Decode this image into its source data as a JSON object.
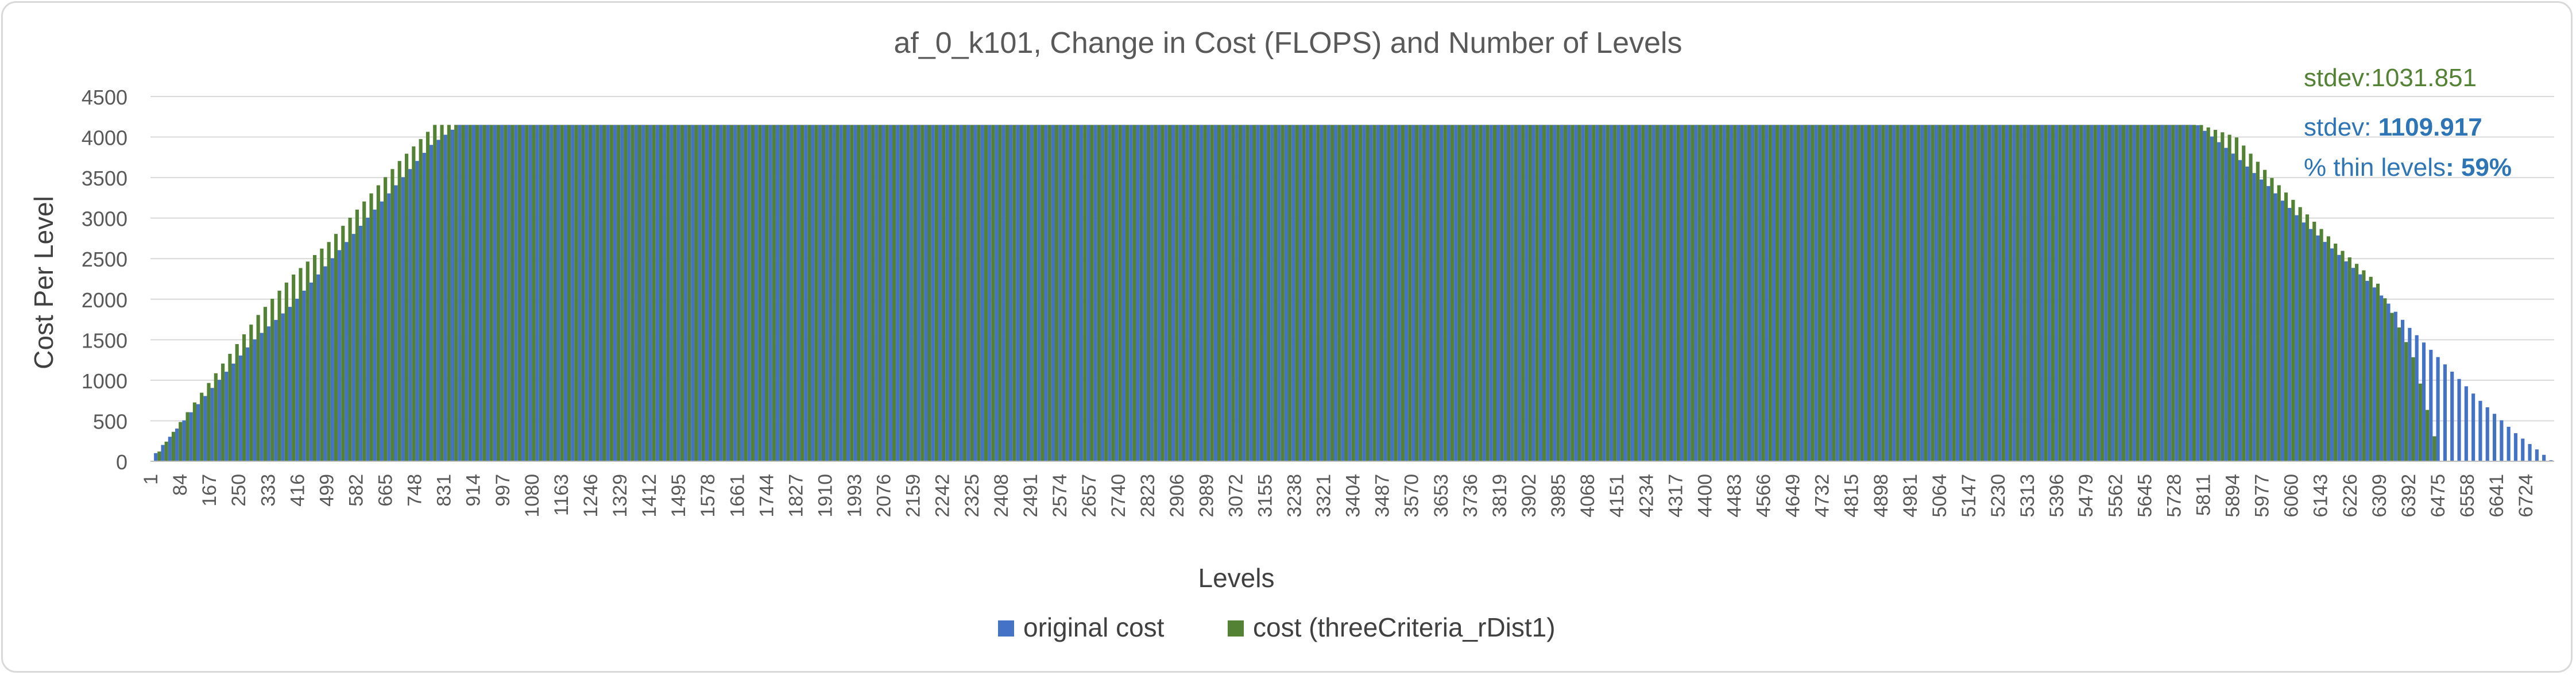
{
  "chart_data": {
    "type": "bar",
    "title": "af_0_k101, Change in Cost (FLOPS) and Number of Levels",
    "xlabel": "Levels",
    "ylabel": "Cost Per Level",
    "ylim": [
      0,
      4500
    ],
    "yticks": [
      0,
      500,
      1000,
      1500,
      2000,
      2500,
      3000,
      3500,
      4000,
      4500
    ],
    "xlim": [
      1,
      6805
    ],
    "xticks": [
      1,
      84,
      167,
      250,
      333,
      416,
      499,
      582,
      665,
      748,
      831,
      914,
      997,
      1080,
      1163,
      1246,
      1329,
      1412,
      1495,
      1578,
      1661,
      1744,
      1827,
      1910,
      1993,
      2076,
      2159,
      2242,
      2325,
      2408,
      2491,
      2574,
      2657,
      2740,
      2823,
      2906,
      2989,
      3072,
      3155,
      3238,
      3321,
      3404,
      3487,
      3570,
      3653,
      3736,
      3819,
      3902,
      3985,
      4068,
      4151,
      4234,
      4317,
      4400,
      4483,
      4566,
      4649,
      4732,
      4815,
      4898,
      4981,
      5064,
      5147,
      5230,
      5313,
      5396,
      5479,
      5562,
      5645,
      5728,
      5811,
      5894,
      5977,
      6060,
      6143,
      6226,
      6309,
      6392,
      6475,
      6558,
      6641,
      6724
    ],
    "grid": true,
    "legend_position": "bottom",
    "series": [
      {
        "name": "original cost",
        "color": "#4472c4",
        "x": [
          1,
          100,
          200,
          300,
          400,
          500,
          600,
          700,
          800,
          880,
          5800,
          5900,
          6000,
          6100,
          6200,
          6300,
          6400,
          6500,
          6600,
          6700,
          6805
        ],
        "values": [
          0,
          500,
          1000,
          1500,
          1900,
          2400,
          2900,
          3400,
          3900,
          4150,
          4150,
          3800,
          3400,
          2950,
          2550,
          2150,
          1650,
          1200,
          750,
          350,
          0
        ]
      },
      {
        "name": "cost (threeCriteria_rDist1)",
        "color": "#548235",
        "x": [
          1,
          100,
          200,
          300,
          400,
          500,
          600,
          700,
          800,
          880,
          5800,
          5900,
          6000,
          6100,
          6200,
          6300,
          6400,
          6480,
          6500,
          6805
        ],
        "values": [
          0,
          600,
          1200,
          1800,
          2300,
          2700,
          3200,
          3700,
          4150,
          4150,
          4150,
          4000,
          3500,
          3050,
          2600,
          2200,
          1300,
          0,
          0,
          0
        ]
      }
    ],
    "annotations": {
      "green_stdev": "stdev:1031.851",
      "blue_stdev_label": "stdev: ",
      "blue_stdev_value": "1109.917",
      "thin_label": "% thin levels",
      "thin_value": ": 59%"
    }
  }
}
